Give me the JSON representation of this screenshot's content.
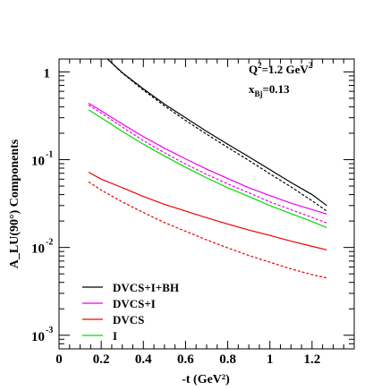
{
  "chart_data": {
    "type": "line",
    "title": "",
    "xlabel": "-t (GeV²)",
    "ylabel": "A_LU(90°) Components",
    "xlim": [
      0,
      1.4
    ],
    "ylim": [
      0.0007,
      1.4
    ],
    "yscale": "log",
    "x_ticks": [
      "0",
      "0.2",
      "0.4",
      "0.6",
      "0.8",
      "1",
      "1.2"
    ],
    "y_ticks": [
      {
        "value": 1,
        "base": "1",
        "exp": ""
      },
      {
        "value": 0.1,
        "base": "10",
        "exp": "-1"
      },
      {
        "value": 0.01,
        "base": "10",
        "exp": "-2"
      },
      {
        "value": 0.001,
        "base": "10",
        "exp": "-3"
      }
    ],
    "annotations": {
      "q2_base": "Q",
      "q2_exp": "2",
      "q2_mid": "=1.2 GeV",
      "q2_unit_exp": "2",
      "xbj_base": "x",
      "xbj_sub": "Bj",
      "xbj_value": "=0.13"
    },
    "legend": {
      "position": "bottom-left"
    },
    "series": [
      {
        "name": "DVCS+I+BH",
        "color": "#000000",
        "dash": false,
        "legend": true,
        "x": [
          0.23,
          0.3,
          0.4,
          0.5,
          0.6,
          0.7,
          0.8,
          0.9,
          1.0,
          1.1,
          1.2,
          1.27
        ],
        "y": [
          1.4,
          0.98,
          0.64,
          0.43,
          0.3,
          0.21,
          0.15,
          0.108,
          0.077,
          0.055,
          0.04,
          0.03
        ]
      },
      {
        "name": "",
        "color": "#000000",
        "dash": true,
        "legend": false,
        "x": [
          0.23,
          0.3,
          0.4,
          0.5,
          0.6,
          0.7,
          0.8,
          0.9,
          1.0,
          1.1,
          1.2,
          1.27
        ],
        "y": [
          1.4,
          0.97,
          0.62,
          0.41,
          0.28,
          0.195,
          0.138,
          0.098,
          0.069,
          0.049,
          0.034,
          0.026
        ]
      },
      {
        "name": "DVCS+I",
        "color": "#ee00ee",
        "dash": false,
        "legend": true,
        "x": [
          0.14,
          0.2,
          0.3,
          0.4,
          0.5,
          0.6,
          0.7,
          0.8,
          0.9,
          1.0,
          1.1,
          1.2,
          1.27
        ],
        "y": [
          0.44,
          0.36,
          0.255,
          0.183,
          0.135,
          0.102,
          0.078,
          0.061,
          0.048,
          0.039,
          0.032,
          0.027,
          0.024
        ]
      },
      {
        "name": "",
        "color": "#ee00ee",
        "dash": true,
        "legend": false,
        "x": [
          0.14,
          0.2,
          0.3,
          0.4,
          0.5,
          0.6,
          0.7,
          0.8,
          0.9,
          1.0,
          1.1,
          1.2,
          1.27
        ],
        "y": [
          0.42,
          0.34,
          0.235,
          0.165,
          0.12,
          0.089,
          0.068,
          0.053,
          0.042,
          0.033,
          0.027,
          0.022,
          0.019
        ]
      },
      {
        "name": "DVCS",
        "color": "#ee0000",
        "dash": false,
        "legend": true,
        "x": [
          0.14,
          0.2,
          0.3,
          0.4,
          0.5,
          0.6,
          0.7,
          0.8,
          0.9,
          1.0,
          1.1,
          1.2,
          1.27
        ],
        "y": [
          0.072,
          0.06,
          0.048,
          0.038,
          0.031,
          0.026,
          0.0218,
          0.0185,
          0.0158,
          0.0137,
          0.0118,
          0.0103,
          0.0094
        ]
      },
      {
        "name": "",
        "color": "#ee0000",
        "dash": true,
        "legend": false,
        "x": [
          0.14,
          0.2,
          0.3,
          0.4,
          0.5,
          0.6,
          0.7,
          0.8,
          0.9,
          1.0,
          1.1,
          1.2,
          1.27
        ],
        "y": [
          0.056,
          0.045,
          0.033,
          0.025,
          0.0192,
          0.0153,
          0.0122,
          0.0099,
          0.0081,
          0.0068,
          0.0057,
          0.0049,
          0.0045
        ]
      },
      {
        "name": "I",
        "color": "#00dd00",
        "dash": false,
        "legend": true,
        "x": [
          0.14,
          0.2,
          0.3,
          0.4,
          0.5,
          0.6,
          0.7,
          0.8,
          0.9,
          1.0,
          1.1,
          1.2,
          1.27
        ],
        "y": [
          0.37,
          0.3,
          0.21,
          0.15,
          0.11,
          0.082,
          0.062,
          0.048,
          0.038,
          0.03,
          0.0243,
          0.0197,
          0.0168
        ]
      }
    ]
  }
}
